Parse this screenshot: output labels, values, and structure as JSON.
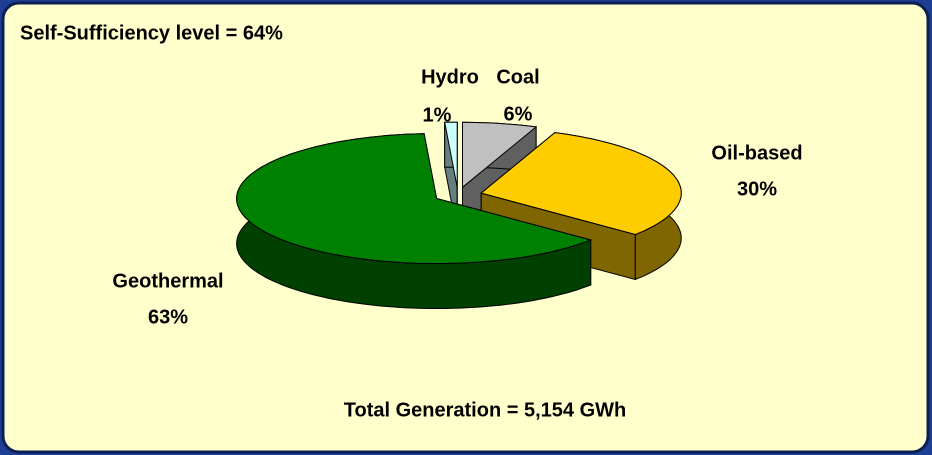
{
  "chart_data": {
    "type": "pie3d",
    "title": "Self-Sufficiency level = 64%",
    "annotation": "Total Generation = 5,154 GWh",
    "categories": [
      "Hydro",
      "Coal",
      "Oil-based",
      "Geothermal"
    ],
    "values": [
      1,
      6,
      30,
      63
    ],
    "value_labels": [
      "1%",
      "6%",
      "30%",
      "63%"
    ],
    "colors": [
      "#ccffff",
      "#c0c0c0",
      "#ffcc00",
      "#008000"
    ]
  }
}
